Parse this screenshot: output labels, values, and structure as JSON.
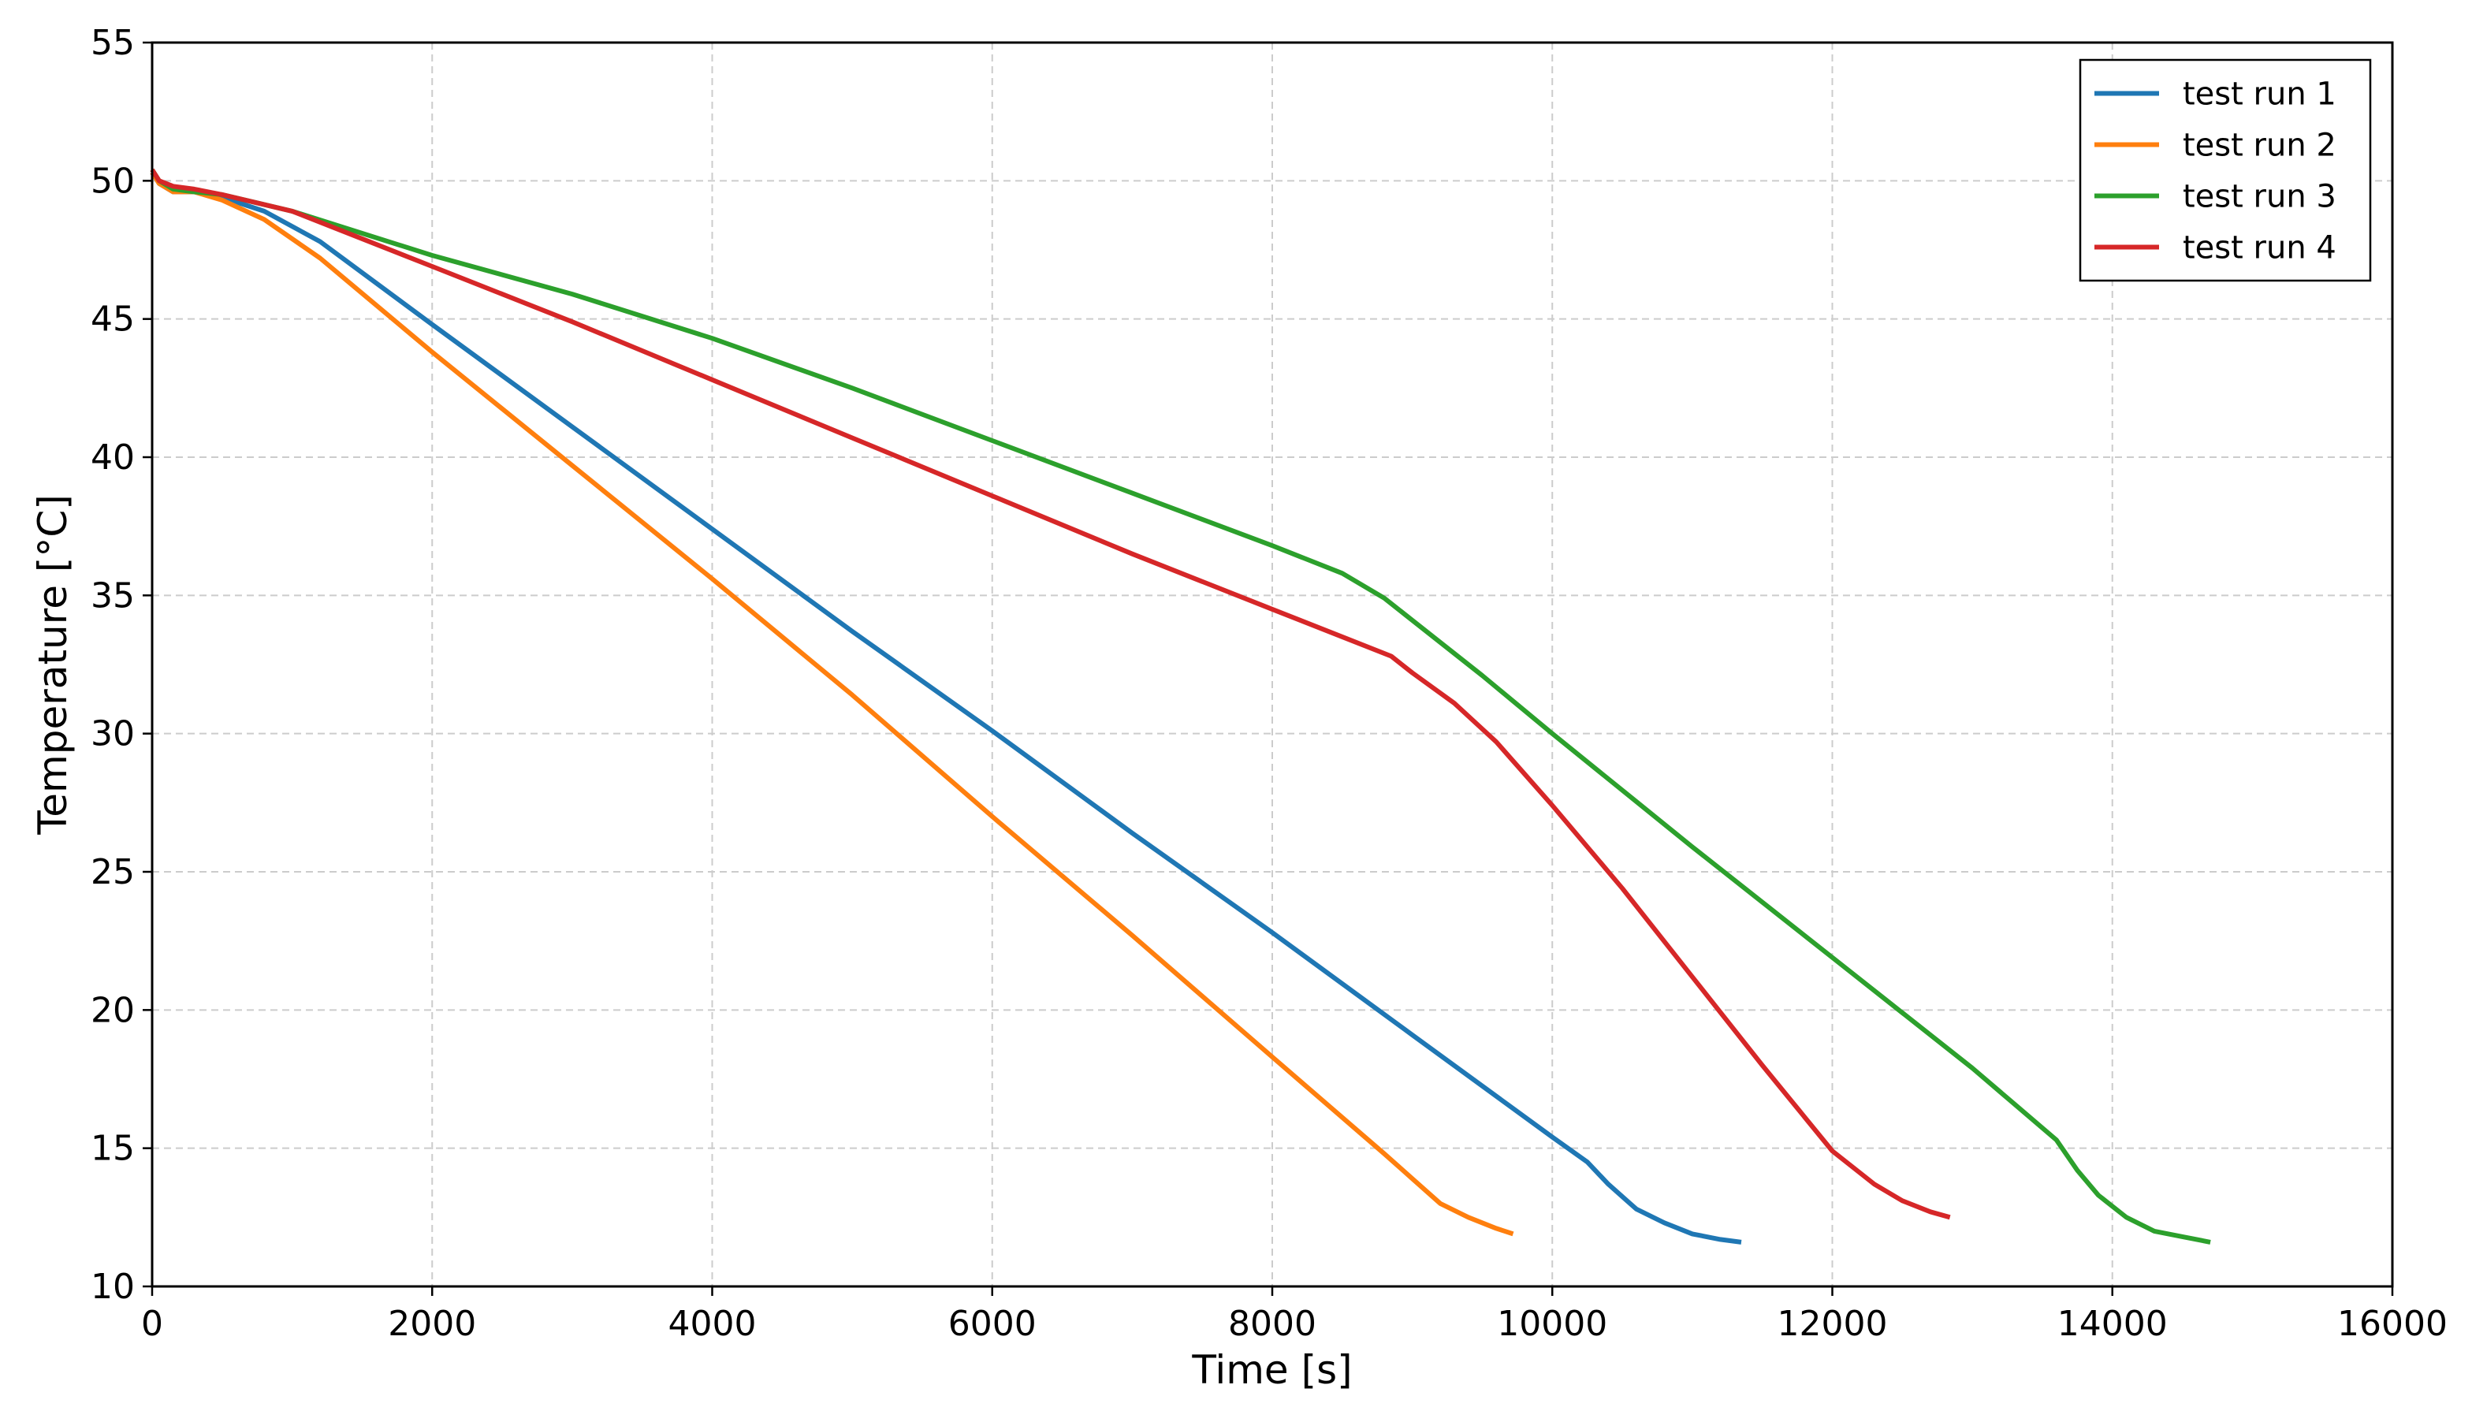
{
  "chart_data": {
    "type": "line",
    "title": "",
    "xlabel": "Time [s]",
    "ylabel": "Temperature [°C]",
    "xlim": [
      0,
      16000
    ],
    "ylim": [
      10,
      55
    ],
    "xticks": [
      0,
      2000,
      4000,
      6000,
      8000,
      10000,
      12000,
      14000,
      16000
    ],
    "yticks": [
      10,
      15,
      20,
      25,
      30,
      35,
      40,
      45,
      50,
      55
    ],
    "xtick_labels": [
      "0",
      "2000",
      "4000",
      "6000",
      "8000",
      "10000",
      "12000",
      "14000",
      "16000"
    ],
    "ytick_labels": [
      "10",
      "15",
      "20",
      "25",
      "30",
      "35",
      "40",
      "45",
      "50",
      "55"
    ],
    "grid": true,
    "legend_position": "top-right",
    "series": [
      {
        "name": "test run 1",
        "color": "#1f77b4",
        "x": [
          0,
          50,
          150,
          300,
          500,
          800,
          1200,
          2000,
          3000,
          4000,
          5000,
          6000,
          7000,
          8000,
          9000,
          10000,
          10250,
          10400,
          10600,
          10800,
          11000,
          11200,
          11350
        ],
        "y": [
          50.3,
          49.9,
          49.6,
          49.6,
          49.4,
          48.9,
          47.8,
          44.8,
          41.1,
          37.4,
          33.7,
          30.1,
          26.4,
          22.8,
          19.1,
          15.4,
          14.5,
          13.7,
          12.8,
          12.3,
          11.9,
          11.7,
          11.6
        ]
      },
      {
        "name": "test run 2",
        "color": "#ff7f0e",
        "x": [
          0,
          50,
          150,
          300,
          500,
          800,
          1200,
          2000,
          3000,
          4000,
          5000,
          6000,
          7000,
          8000,
          8800,
          9000,
          9200,
          9400,
          9600,
          9720
        ],
        "y": [
          50.3,
          49.9,
          49.6,
          49.6,
          49.3,
          48.6,
          47.2,
          43.8,
          39.7,
          35.6,
          31.4,
          27.0,
          22.7,
          18.3,
          14.8,
          13.9,
          13.0,
          12.5,
          12.1,
          11.9
        ]
      },
      {
        "name": "test run 3",
        "color": "#2ca02c",
        "x": [
          0,
          50,
          150,
          300,
          500,
          1000,
          2000,
          3000,
          4000,
          5000,
          6000,
          7000,
          8000,
          8500,
          8800,
          9000,
          9500,
          10000,
          11000,
          12000,
          13000,
          13600,
          13750,
          13900,
          14100,
          14300,
          14500,
          14700
        ],
        "y": [
          50.4,
          50.0,
          49.7,
          49.6,
          49.5,
          48.9,
          47.3,
          45.9,
          44.3,
          42.5,
          40.6,
          38.7,
          36.8,
          35.8,
          34.9,
          34.1,
          32.1,
          30.0,
          25.9,
          21.9,
          17.9,
          15.3,
          14.2,
          13.3,
          12.5,
          12.0,
          11.8,
          11.6
        ]
      },
      {
        "name": "test run 4",
        "color": "#d62728",
        "x": [
          0,
          50,
          150,
          300,
          500,
          1000,
          2000,
          3000,
          4000,
          5000,
          6000,
          7000,
          8000,
          8500,
          8850,
          9000,
          9300,
          9600,
          10000,
          10500,
          11000,
          11500,
          12000,
          12300,
          12500,
          12700,
          12840
        ],
        "y": [
          50.4,
          50.0,
          49.8,
          49.7,
          49.5,
          48.9,
          46.9,
          44.9,
          42.8,
          40.7,
          38.6,
          36.5,
          34.5,
          33.5,
          32.8,
          32.2,
          31.1,
          29.7,
          27.4,
          24.4,
          21.2,
          18.0,
          14.9,
          13.7,
          13.1,
          12.7,
          12.5
        ]
      }
    ]
  }
}
